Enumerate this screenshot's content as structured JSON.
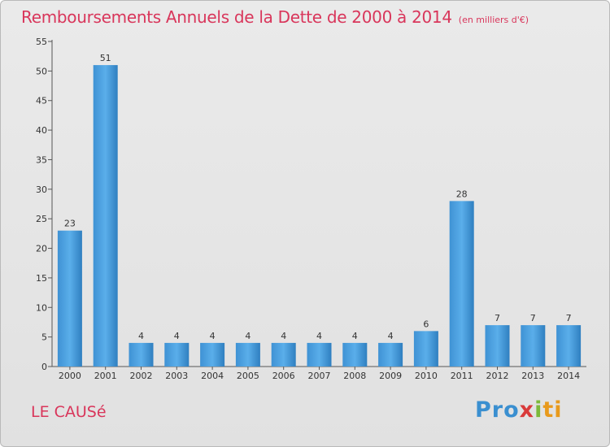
{
  "chart_data": {
    "type": "bar",
    "title": "Remboursements Annuels de la Dette de 2000 à 2014",
    "subtitle": "(en milliers d'€)",
    "categories": [
      "2000",
      "2001",
      "2002",
      "2003",
      "2004",
      "2005",
      "2006",
      "2007",
      "2008",
      "2009",
      "2010",
      "2011",
      "2012",
      "2013",
      "2014"
    ],
    "values": [
      23,
      51,
      4,
      4,
      4,
      4,
      4,
      4,
      4,
      4,
      6,
      28,
      7,
      7,
      7
    ],
    "ylim": [
      0,
      55
    ],
    "yticks": [
      0,
      5,
      10,
      15,
      20,
      25,
      30,
      35,
      40,
      45,
      50,
      55
    ],
    "grid": false,
    "bar_color": "#4a9fe0"
  },
  "footer": {
    "commune": "LE CAUSé",
    "logo": {
      "p1": "Pro",
      "p2": "x",
      "p3": "i",
      "p4": "ti"
    }
  }
}
